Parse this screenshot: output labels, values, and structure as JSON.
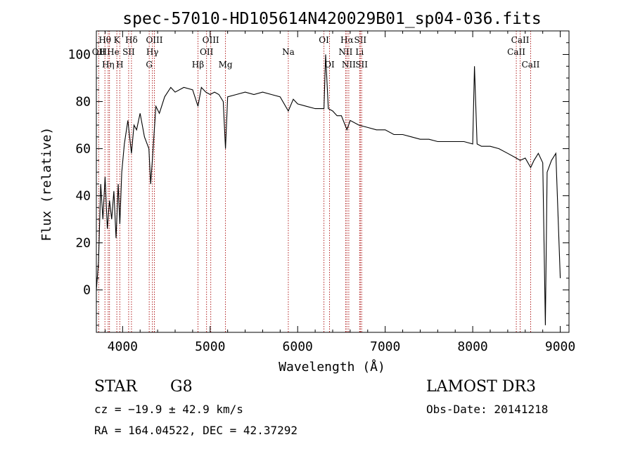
{
  "chart_data": {
    "type": "line",
    "title": "spec-57010-HD105614N420029B01_sp04-036.fits",
    "xlabel": "Wavelength (Å)",
    "ylabel": "Flux (relative)",
    "xlim": [
      3700,
      9100
    ],
    "ylim": [
      -18,
      110
    ],
    "x_ticks": [
      4000,
      5000,
      6000,
      7000,
      8000,
      9000
    ],
    "y_ticks": [
      0,
      20,
      40,
      60,
      80,
      100
    ],
    "grid": false,
    "line_color": "#000000",
    "marker_color": "#b22222",
    "series": [
      {
        "x": [
          3700,
          3725,
          3750,
          3775,
          3800,
          3825,
          3850,
          3875,
          3900,
          3925,
          3950,
          3968,
          3990,
          4020,
          4060,
          4101,
          4130,
          4160,
          4200,
          4250,
          4300,
          4320,
          4340,
          4380,
          4420,
          4480,
          4550,
          4600,
          4700,
          4800,
          4861,
          4900,
          4950,
          5000,
          5050,
          5100,
          5150,
          5175,
          5200,
          5300,
          5400,
          5500,
          5600,
          5700,
          5800,
          5893,
          5950,
          6000,
          6100,
          6200,
          6300,
          6320,
          6350,
          6400,
          6450,
          6500,
          6563,
          6600,
          6700,
          6800,
          6900,
          7000,
          7100,
          7200,
          7300,
          7400,
          7500,
          7600,
          7700,
          7800,
          7900,
          8000,
          8020,
          8050,
          8100,
          8200,
          8300,
          8400,
          8498,
          8542,
          8600,
          8662,
          8700,
          8750,
          8800,
          8830,
          8850,
          8900,
          8950,
          9000
        ],
        "y": [
          0,
          12,
          45,
          30,
          48,
          26,
          38,
          30,
          42,
          22,
          45,
          28,
          50,
          62,
          72,
          58,
          70,
          68,
          75,
          65,
          60,
          45,
          55,
          78,
          75,
          82,
          86,
          84,
          86,
          85,
          78,
          86,
          84,
          83,
          84,
          83,
          80,
          60,
          82,
          83,
          84,
          83,
          84,
          83,
          82,
          76,
          81,
          79,
          78,
          77,
          77,
          100,
          77,
          76,
          74,
          74,
          68,
          72,
          70,
          69,
          68,
          68,
          66,
          66,
          65,
          64,
          64,
          63,
          63,
          63,
          63,
          62,
          95,
          62,
          61,
          61,
          60,
          58,
          56,
          55,
          56,
          52,
          55,
          58,
          54,
          -15,
          50,
          55,
          58,
          5
        ]
      }
    ],
    "line_markers": [
      {
        "label": "Hθ",
        "wavelength": 3798,
        "row": 1
      },
      {
        "label": "OII",
        "wavelength": 3727,
        "row": 2
      },
      {
        "label": "HHe",
        "wavelength": 3850,
        "row": 2
      },
      {
        "label": "Hη",
        "wavelength": 3835,
        "row": 3
      },
      {
        "label": "K",
        "wavelength": 3934,
        "row": 1
      },
      {
        "label": "H",
        "wavelength": 3968,
        "row": 3
      },
      {
        "label": "SII",
        "wavelength": 4069,
        "row": 2
      },
      {
        "label": "Hδ",
        "wavelength": 4101,
        "row": 1
      },
      {
        "label": "OIII",
        "wavelength": 4363,
        "row": 1
      },
      {
        "label": "Hγ",
        "wavelength": 4340,
        "row": 2
      },
      {
        "label": "G",
        "wavelength": 4304,
        "row": 3
      },
      {
        "label": "Hβ",
        "wavelength": 4861,
        "row": 3
      },
      {
        "label": "OIII",
        "wavelength": 5007,
        "row": 1
      },
      {
        "label": "OII",
        "wavelength": 4959,
        "row": 2
      },
      {
        "label": "Mg",
        "wavelength": 5175,
        "row": 3
      },
      {
        "label": "Na",
        "wavelength": 5893,
        "row": 2
      },
      {
        "label": "OI",
        "wavelength": 6300,
        "row": 1
      },
      {
        "label": "OI",
        "wavelength": 6364,
        "row": 3
      },
      {
        "label": "Hα",
        "wavelength": 6563,
        "row": 1
      },
      {
        "label": "SII",
        "wavelength": 6716,
        "row": 1
      },
      {
        "label": "NII",
        "wavelength": 6548,
        "row": 2
      },
      {
        "label": "Li",
        "wavelength": 6708,
        "row": 2
      },
      {
        "label": "NII",
        "wavelength": 6584,
        "row": 3
      },
      {
        "label": "SII",
        "wavelength": 6731,
        "row": 3
      },
      {
        "label": "CaII",
        "wavelength": 8542,
        "row": 1
      },
      {
        "label": "CaII",
        "wavelength": 8498,
        "row": 2
      },
      {
        "label": "CaII",
        "wavelength": 8662,
        "row": 3
      }
    ]
  },
  "info": {
    "object_class": "STAR",
    "subclass": "G8",
    "survey": "LAMOST DR3",
    "cz": "cz = −19.9 ± 42.9 km/s",
    "obs_date": "Obs-Date: 20141218",
    "coords": "RA = 164.04522, DEC =  42.37292"
  }
}
